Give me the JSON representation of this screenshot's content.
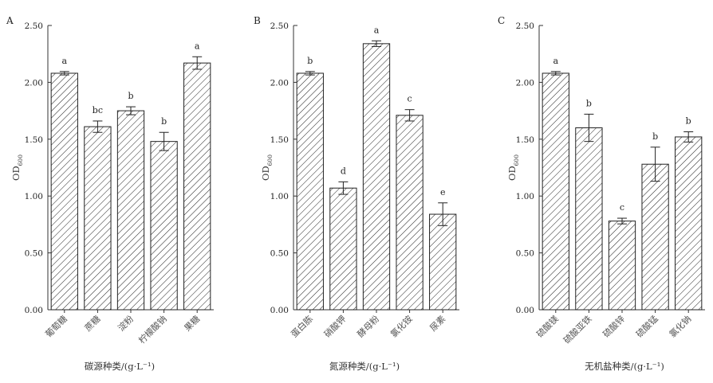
{
  "figure": {
    "panels": [
      "A",
      "B",
      "C"
    ]
  },
  "chart_data": [
    {
      "type": "bar",
      "panel": "A",
      "categories": [
        "葡萄糖",
        "蔗糖",
        "淀粉",
        "柠檬酸钠",
        "果糖"
      ],
      "values": [
        2.08,
        1.61,
        1.75,
        1.48,
        2.17
      ],
      "errors": [
        0.015,
        0.05,
        0.035,
        0.08,
        0.055
      ],
      "significance": [
        "a",
        "bc",
        "b",
        "b",
        "a"
      ],
      "xlabel": "碳源种类/(g·L⁻¹)",
      "ylabel": "OD600",
      "ylabel_main": "OD",
      "ylabel_sub": "600",
      "ylim": [
        0,
        2.5
      ],
      "yticks": [
        "0.00",
        "0.50",
        "1.00",
        "1.50",
        "2.00",
        "2.50"
      ],
      "pattern": "diagonal-hatch",
      "grid": false
    },
    {
      "type": "bar",
      "panel": "B",
      "categories": [
        "蛋白胨",
        "硝酸钾",
        "酵母粉",
        "氯化铵",
        "尿素"
      ],
      "values": [
        2.08,
        1.07,
        2.34,
        1.71,
        0.84
      ],
      "errors": [
        0.015,
        0.055,
        0.025,
        0.05,
        0.1
      ],
      "significance": [
        "b",
        "d",
        "a",
        "c",
        "e"
      ],
      "xlabel": "氮源种类/(g·L⁻¹)",
      "ylabel": "OD600",
      "ylabel_main": "OD",
      "ylabel_sub": "600",
      "ylim": [
        0,
        2.5
      ],
      "yticks": [
        "0.00",
        "0.50",
        "1.00",
        "1.50",
        "2.00",
        "2.50"
      ],
      "pattern": "diagonal-hatch",
      "grid": false
    },
    {
      "type": "bar",
      "panel": "C",
      "categories": [
        "硫酸镁",
        "硫酸亚铁",
        "硫酸锌",
        "硫酸锰",
        "氯化钠"
      ],
      "values": [
        2.08,
        1.6,
        0.78,
        1.28,
        1.52
      ],
      "errors": [
        0.015,
        0.12,
        0.025,
        0.15,
        0.045
      ],
      "significance": [
        "a",
        "b",
        "c",
        "b",
        "b"
      ],
      "xlabel": "无机盐种类/(g·L⁻¹)",
      "ylabel": "OD600",
      "ylabel_main": "OD",
      "ylabel_sub": "600",
      "ylim": [
        0,
        2.5
      ],
      "yticks": [
        "0.00",
        "0.50",
        "1.00",
        "1.50",
        "2.00",
        "2.50"
      ],
      "pattern": "diagonal-hatch",
      "grid": false
    }
  ]
}
